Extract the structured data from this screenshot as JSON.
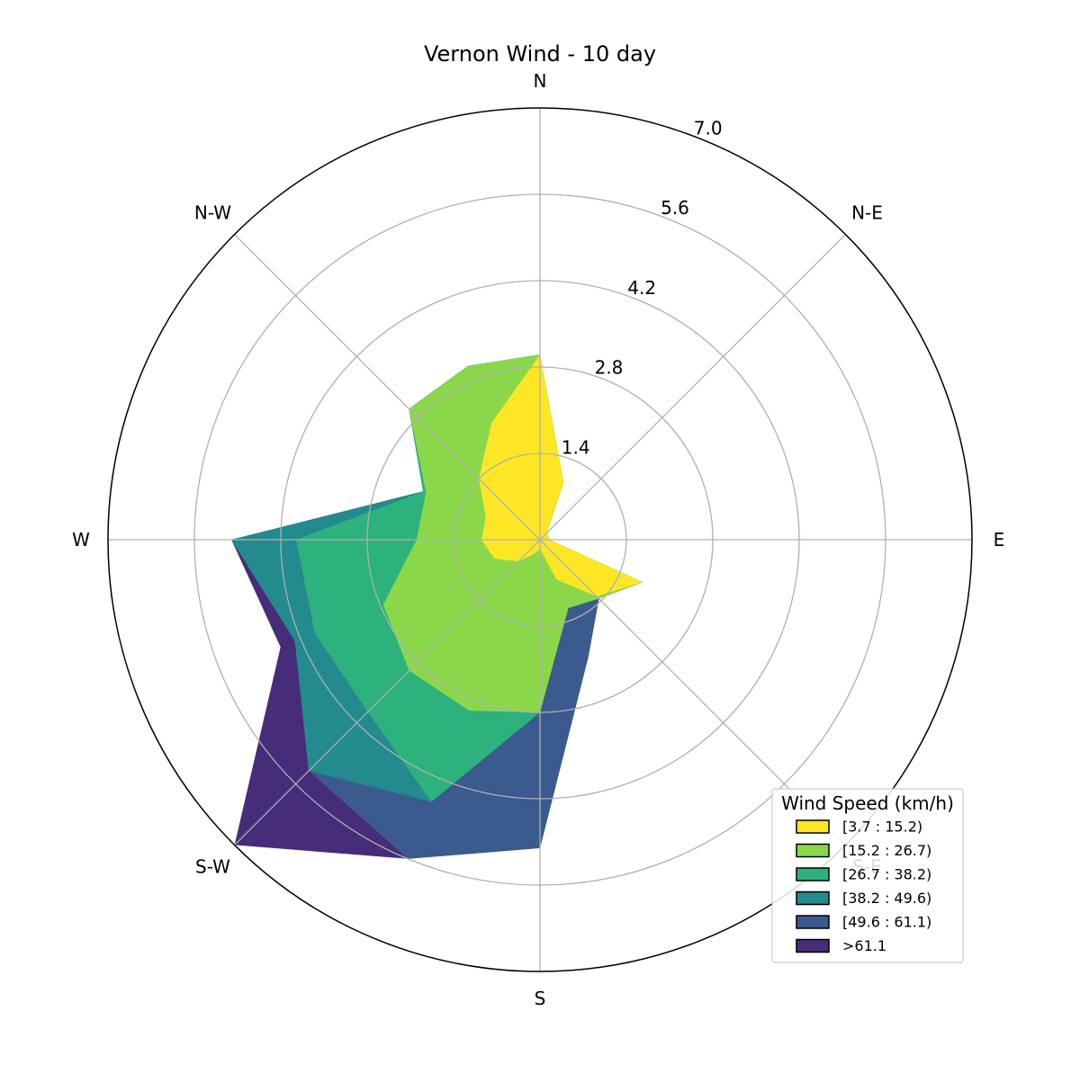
{
  "chart_data": {
    "type": "windrose",
    "title": "Vernon Wind - 10 day",
    "directions": [
      "N",
      "N-E",
      "E",
      "S-E",
      "S",
      "S-W",
      "W",
      "N-W"
    ],
    "radial_ticks": [
      "1.4",
      "2.8",
      "4.2",
      "5.6",
      "7.0"
    ],
    "radial_tick_values": [
      1.4,
      2.8,
      4.2,
      5.6,
      7.0
    ],
    "rmax": 7.0,
    "grid": true,
    "legend": {
      "title": "Wind Speed (km/h)",
      "placement": "lower-right"
    },
    "sector_angles_deg": [
      0,
      22.5,
      45,
      67.5,
      90,
      112.5,
      135,
      157.5,
      180,
      202.5,
      225,
      247.5,
      270,
      292.5,
      315,
      337.5,
      360
    ],
    "series": [
      {
        "name": "[3.7 : 15.2)",
        "color": "#fde725",
        "values": [
          3.0,
          1.0,
          0.15,
          0.15,
          0.15,
          1.8,
          1.3,
          0.7,
          0.15,
          0.25,
          0.5,
          0.8,
          0.95,
          0.95,
          1.4,
          2.05,
          3.0
        ]
      },
      {
        "name": "[15.2 : 26.7)",
        "color": "#8ad84a",
        "values": [
          3.0,
          1.0,
          0.15,
          0.15,
          0.15,
          1.8,
          1.35,
          1.2,
          2.8,
          3.0,
          3.0,
          2.75,
          2.0,
          2.0,
          3.0,
          3.05,
          3.0
        ]
      },
      {
        "name": "[26.7 : 38.2)",
        "color": "#2db27d",
        "values": [
          3.0,
          1.0,
          0.15,
          0.15,
          0.15,
          1.8,
          1.35,
          1.2,
          2.8,
          4.6,
          3.95,
          3.95,
          3.95,
          2.05,
          3.0,
          3.05,
          3.0
        ]
      },
      {
        "name": "[38.2 : 49.6)",
        "color": "#238a8d",
        "values": [
          3.0,
          1.0,
          0.15,
          0.15,
          0.15,
          1.8,
          1.35,
          1.2,
          2.8,
          4.6,
          5.3,
          4.3,
          5.0,
          2.05,
          3.0,
          3.05,
          3.0
        ]
      },
      {
        "name": "[49.6 : 61.1)",
        "color": "#3b5a8e",
        "values": [
          3.0,
          1.0,
          0.15,
          0.15,
          0.15,
          1.8,
          1.35,
          2.05,
          5.0,
          5.6,
          5.3,
          4.3,
          5.0,
          2.05,
          3.0,
          3.05,
          3.0
        ]
      },
      {
        "name": ">61.1",
        "color": "#472c7a",
        "values": [
          3.0,
          1.0,
          0.15,
          0.15,
          0.15,
          1.8,
          1.35,
          2.05,
          5.0,
          5.6,
          7.0,
          4.55,
          5.0,
          2.05,
          3.0,
          3.05,
          3.0
        ]
      }
    ]
  }
}
